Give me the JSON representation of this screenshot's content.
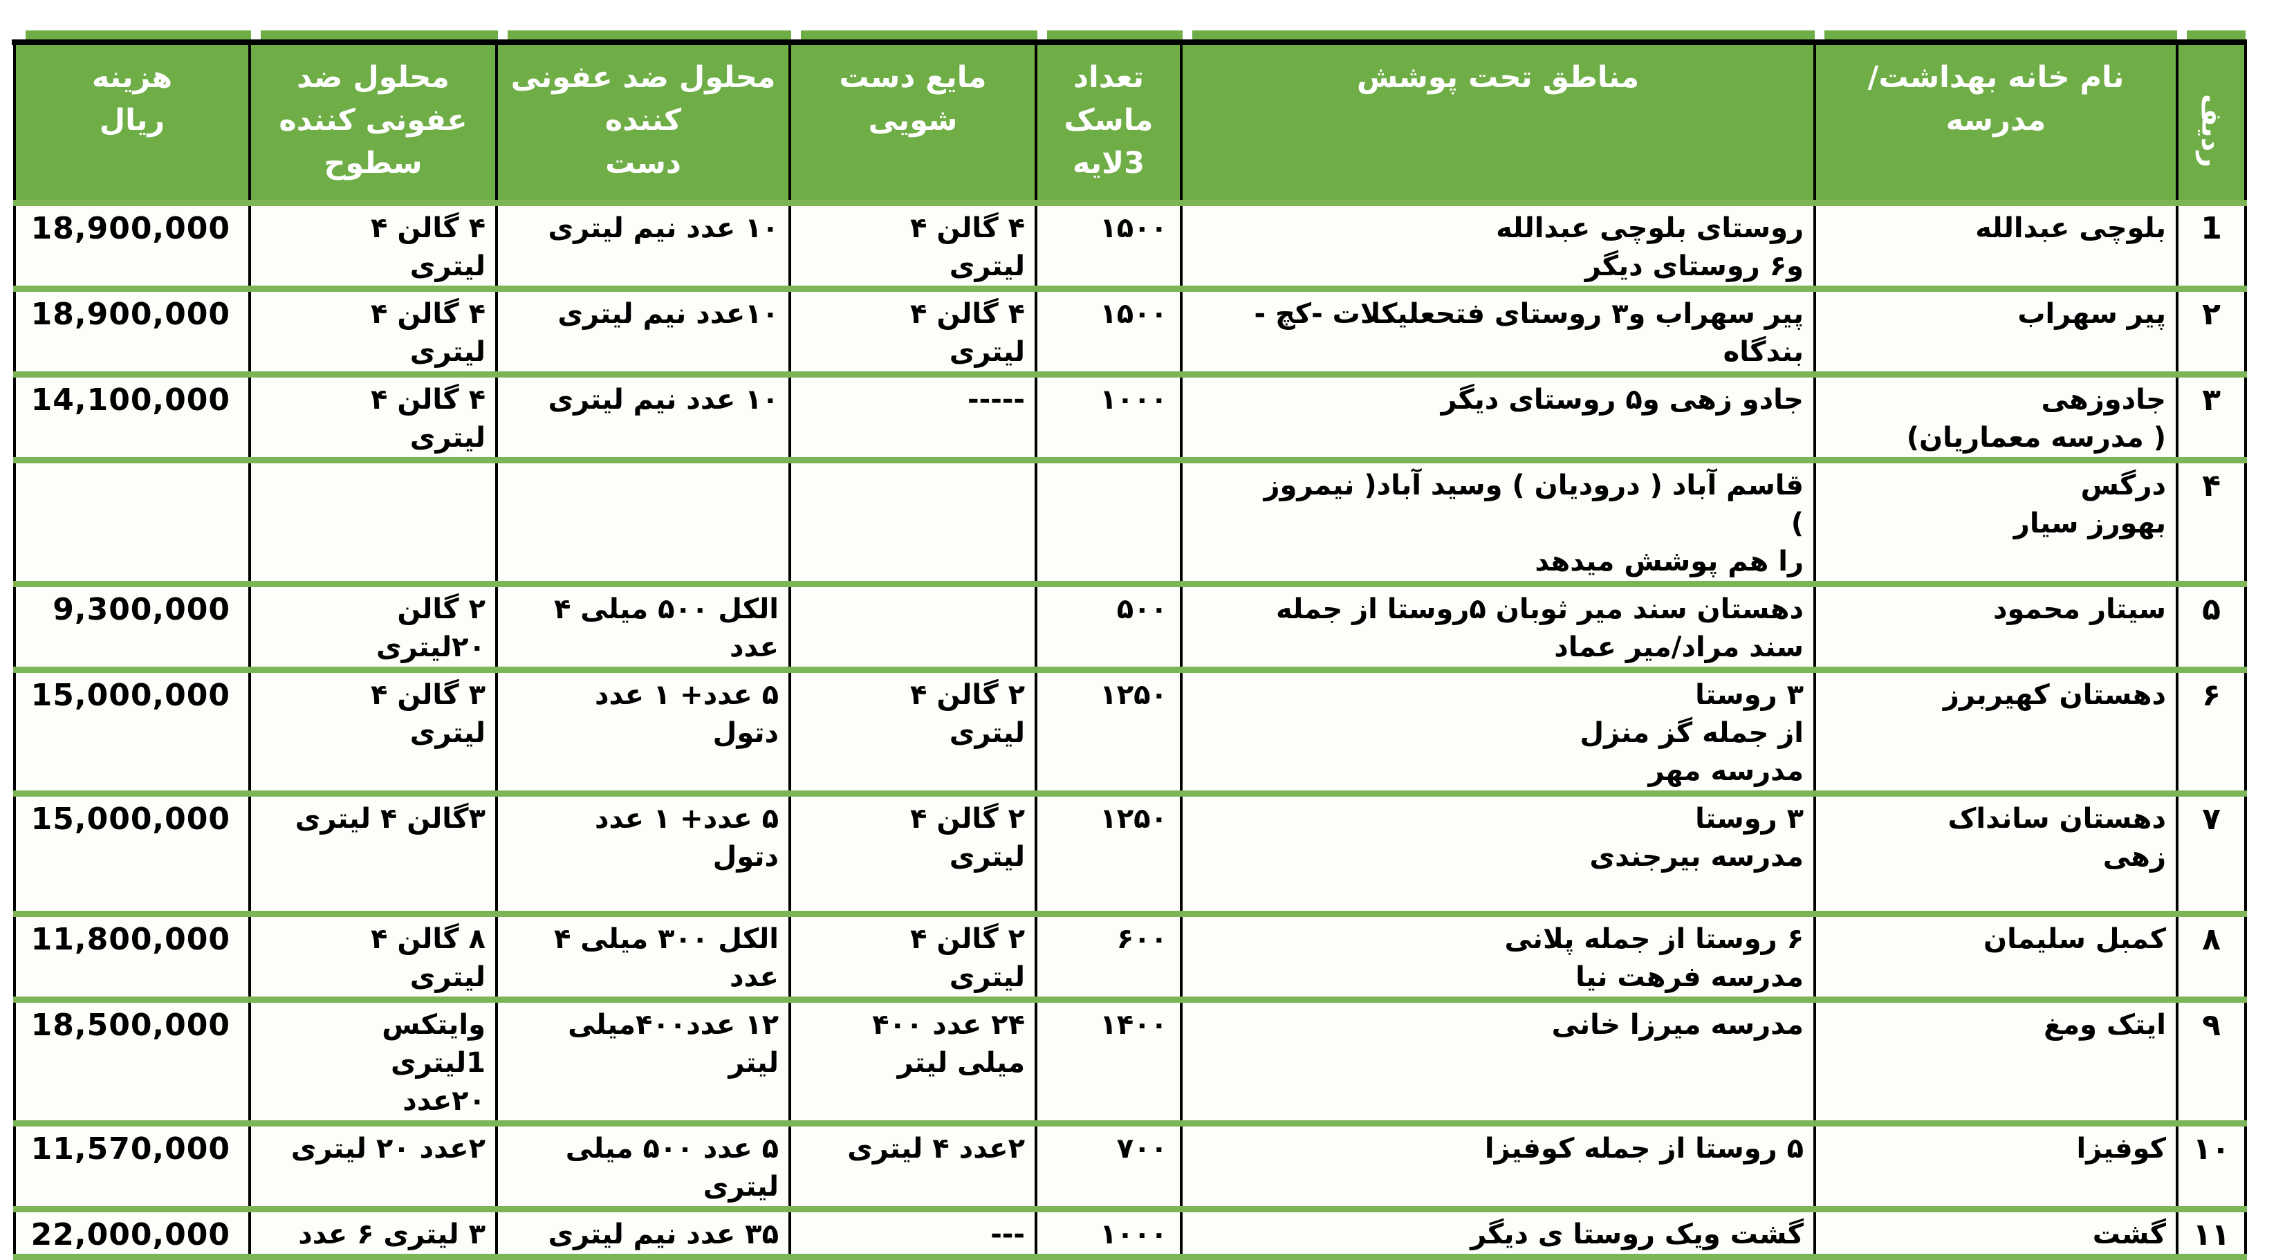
{
  "theme": {
    "header_bg": "#6FAD47",
    "header_text": "#FFFFFF",
    "grid_green": "#7CB556",
    "grid_black": "#000000"
  },
  "header": {
    "num": "ردیف",
    "name": [
      "نام خانه بهداشت/",
      "مدرسه"
    ],
    "areas": [
      "مناطق تحت پوشش"
    ],
    "mask": [
      "تعداد",
      "ماسک",
      "3لایه"
    ],
    "soap": [
      "مایع دست",
      "شویی"
    ],
    "hand": [
      "محلول ضد عفونی",
      "کننده",
      "دست"
    ],
    "surface": [
      "محلول ضد",
      "عفونی کننده",
      "سطوح"
    ],
    "cost": [
      "هزینه",
      "ریال"
    ]
  },
  "rows": [
    {
      "num": "1",
      "name": [
        "بلوچی عبدالله"
      ],
      "areas": [
        "روستای بلوچی عبدالله",
        "و۶ روستای دیگر"
      ],
      "mask": "۱۵۰۰",
      "soap": [
        "۴ گالن ۴",
        "لیتری"
      ],
      "hand": [
        "۱۰ عدد نیم لیتری"
      ],
      "surface": [
        "۴ گالن ۴",
        "لیتری"
      ],
      "cost": "18,900,000"
    },
    {
      "num": "۲",
      "name": [
        "پیر سهراب"
      ],
      "areas": [
        "پیر سهراب و۳ روستای فتحعلیکلات -کچ -",
        "بندگاه"
      ],
      "mask": "۱۵۰۰",
      "soap": [
        "۴ گالن ۴",
        "لیتری"
      ],
      "hand": [
        "۱۰عدد نیم لیتری"
      ],
      "surface": [
        "۴ گالن ۴",
        "لیتری"
      ],
      "cost": "18,900,000"
    },
    {
      "num": "۳",
      "name": [
        "جادوزهی",
        "( مدرسه معماریان)"
      ],
      "areas": [
        "جادو زهی و۵ روستای دیگر"
      ],
      "mask": "۱۰۰۰",
      "soap": [
        "-----"
      ],
      "hand": [
        "۱۰ عدد نیم لیتری"
      ],
      "surface": [
        "۴ گالن ۴",
        "لیتری"
      ],
      "cost": "14,100,000"
    },
    {
      "num": "۴",
      "name": [
        "درگس",
        "بهورز سیار"
      ],
      "areas": [
        "قاسم آباد  ( درودیان ) وسید آباد( نیمروز",
        ")",
        "را هم پوشش میدهد"
      ],
      "mask": "",
      "soap": [],
      "hand": [],
      "surface": [],
      "cost": ""
    },
    {
      "num": "۵",
      "name": [
        "سیتار محمود"
      ],
      "areas": [
        "دهستان سند میر ثوبان ۵روستا از جمله",
        "سند مراد/میر عماد"
      ],
      "mask": "۵۰۰",
      "soap": [],
      "hand": [
        "الکل ۵۰۰ میلی  ۴",
        "عدد"
      ],
      "surface": [
        "۲ گالن",
        "۲۰لیتری"
      ],
      "cost": "9,300,000"
    },
    {
      "num": "۶",
      "name": [
        "دهستان کهیربرز"
      ],
      "areas": [
        "۳ روستا",
        "از جمله گز منزل",
        "مدرسه مهر"
      ],
      "mask": "۱۲۵۰",
      "soap": [
        "۲ گالن ۴",
        "لیتری"
      ],
      "hand": [
        "۵ عدد+ ۱ عدد",
        "دتول"
      ],
      "surface": [
        "۳ گالن ۴",
        "لیتری"
      ],
      "cost": "15,000,000"
    },
    {
      "num": "۷",
      "name": [
        "دهستان سانداک",
        "زهی"
      ],
      "areas": [
        "۳ روستا",
        "مدرسه بیرجندی"
      ],
      "mask": "۱۲۵۰",
      "soap": [
        "۲ گالن ۴",
        "لیتری"
      ],
      "hand": [
        "۵ عدد+ ۱ عدد",
        "دتول"
      ],
      "surface": [
        "۳گالن ۴ لیتری"
      ],
      "cost": "15,000,000"
    },
    {
      "num": "۸",
      "name": [
        "کمبل سلیمان"
      ],
      "areas": [
        "۶ روستا از جمله پلانی",
        "مدرسه فرهت نیا"
      ],
      "mask": "۶۰۰",
      "soap": [
        "۲ گالن ۴",
        "لیتری"
      ],
      "hand": [
        "الکل ۳۰۰ میلی ۴",
        "عدد"
      ],
      "surface": [
        "۸ گالن ۴",
        "لیتری"
      ],
      "cost": "11,800,000"
    },
    {
      "num": "۹",
      "name": [
        "ایتک  ومغ"
      ],
      "areas": [
        "مدرسه میرزا خانی"
      ],
      "mask": "۱۴۰۰",
      "soap": [
        "۲۴ عدد ۴۰۰",
        "میلی لیتر"
      ],
      "hand": [
        "۱۲ عدد۴۰۰میلی",
        "لیتر"
      ],
      "surface": [
        "وایتکس",
        "1لیتری",
        "۲۰عدد"
      ],
      "cost": "18,500,000"
    },
    {
      "num": "۱۰",
      "name": [
        "کوفیزا"
      ],
      "areas": [
        "۵ روستا از جمله کوفیزا"
      ],
      "mask": "۷۰۰",
      "soap": [
        "۲عدد ۴ لیتری"
      ],
      "hand": [
        "۵ عدد ۵۰۰ میلی",
        "لیتری"
      ],
      "surface": [
        "۲عدد ۲۰ لیتری"
      ],
      "cost": "11,570,000"
    },
    {
      "num": "۱۱",
      "name": [
        "گشت"
      ],
      "areas": [
        "گشت ویک روستا ی دیگر"
      ],
      "mask": "۱۰۰۰",
      "soap": [
        "---"
      ],
      "hand": [
        "۳۵ عدد  نیم لیتری"
      ],
      "surface": [
        "۳ لیتری ۶ عدد"
      ],
      "cost": "22,000,000"
    }
  ]
}
